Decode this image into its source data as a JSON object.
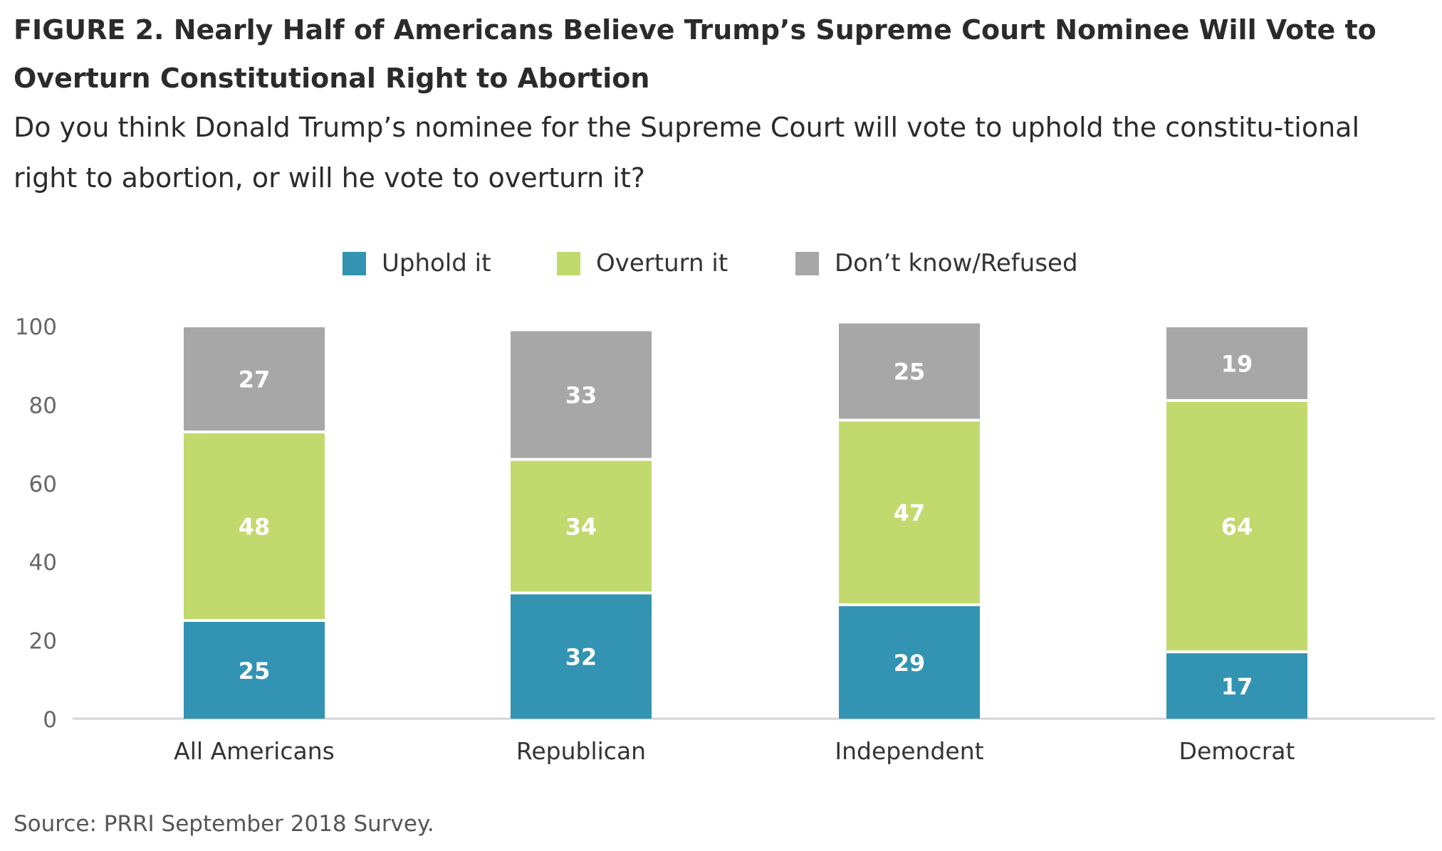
{
  "figure": {
    "title": "FIGURE 2. Nearly Half of Americans Believe Trump’s Supreme Court Nominee Will Vote to Overturn Constitutional Right to Abortion",
    "subtitle": "Do you think Donald Trump’s nominee for the Supreme Court will vote to uphold the constitu-tional right to abortion, or will he vote to overturn it?",
    "source": "Source: PRRI September 2018 Survey."
  },
  "legend": {
    "items": [
      {
        "label": "Uphold it",
        "color": "#3293b2"
      },
      {
        "label": "Overturn it",
        "color": "#c2d96d"
      },
      {
        "label": "Don’t know/Refused",
        "color": "#a7a7a7"
      }
    ]
  },
  "chart_data": {
    "type": "bar",
    "stacked": true,
    "categories": [
      "All Americans",
      "Republican",
      "Independent",
      "Democrat"
    ],
    "series": [
      {
        "name": "Uphold it",
        "color": "#3293b2",
        "values": [
          25,
          32,
          29,
          17
        ]
      },
      {
        "name": "Overturn it",
        "color": "#c2d96d",
        "values": [
          48,
          34,
          47,
          64
        ]
      },
      {
        "name": "Don’t know/Refused",
        "color": "#a7a7a7",
        "values": [
          27,
          33,
          25,
          19
        ]
      }
    ],
    "ylim": [
      0,
      100
    ],
    "yticks": [
      0,
      20,
      40,
      60,
      80,
      100
    ],
    "grid": false,
    "legend_position": "top-center"
  }
}
